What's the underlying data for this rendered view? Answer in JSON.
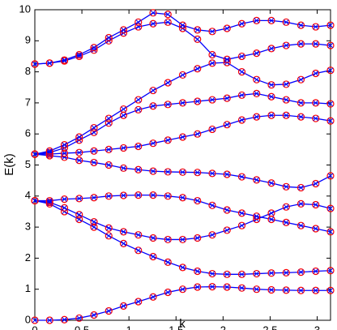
{
  "chart_data": {
    "type": "line",
    "xlabel": "k",
    "ylabel": "E(k)",
    "x": [
      0,
      0.1571,
      0.3142,
      0.4712,
      0.6283,
      0.7854,
      0.9425,
      1.0996,
      1.2566,
      1.4137,
      1.5708,
      1.7279,
      1.885,
      2.042,
      2.1991,
      2.3562,
      2.5133,
      2.6704,
      2.8274,
      2.9845,
      3.1416
    ],
    "line_color": "#0000ff",
    "marker_color": "#ff0000",
    "series": [
      {
        "values": [
          0,
          0,
          0.02,
          0.07,
          0.17,
          0.3,
          0.46,
          0.6,
          0.75,
          0.9,
          1.0,
          1.07,
          1.08,
          1.07,
          1.04,
          1.0,
          0.98,
          0.97,
          0.96,
          0.96,
          0.96
        ]
      },
      {
        "values": [
          3.85,
          3.75,
          3.5,
          3.25,
          3.0,
          2.72,
          2.47,
          2.25,
          2.05,
          1.87,
          1.7,
          1.58,
          1.5,
          1.48,
          1.48,
          1.5,
          1.52,
          1.53,
          1.55,
          1.58,
          1.6
        ]
      },
      {
        "values": [
          3.85,
          3.8,
          3.62,
          3.4,
          3.17,
          2.97,
          2.85,
          2.75,
          2.65,
          2.6,
          2.6,
          2.65,
          2.75,
          2.9,
          3.05,
          3.25,
          3.45,
          3.65,
          3.75,
          3.72,
          3.6
        ]
      },
      {
        "values": [
          3.85,
          3.85,
          3.9,
          3.92,
          3.95,
          4.0,
          4.02,
          4.03,
          4.03,
          4.0,
          3.95,
          3.85,
          3.7,
          3.55,
          3.45,
          3.35,
          3.25,
          3.15,
          3.05,
          2.95,
          2.85
        ]
      },
      {
        "values": [
          5.35,
          5.3,
          5.25,
          5.15,
          5.08,
          5.0,
          4.9,
          4.85,
          4.8,
          4.78,
          4.77,
          4.76,
          4.73,
          4.7,
          4.62,
          4.52,
          4.42,
          4.3,
          4.27,
          4.4,
          4.65
        ]
      },
      {
        "values": [
          5.35,
          5.35,
          5.38,
          5.4,
          5.45,
          5.5,
          5.55,
          5.6,
          5.7,
          5.8,
          5.9,
          6.0,
          6.15,
          6.3,
          6.45,
          6.55,
          6.6,
          6.6,
          6.55,
          6.5,
          6.42
        ]
      },
      {
        "values": [
          5.35,
          5.4,
          5.55,
          5.8,
          6.05,
          6.35,
          6.6,
          6.78,
          6.9,
          6.95,
          7.0,
          7.05,
          7.1,
          7.15,
          7.25,
          7.3,
          7.2,
          7.1,
          7.0,
          7.0,
          6.97
        ]
      },
      {
        "values": [
          5.35,
          5.45,
          5.65,
          5.9,
          6.2,
          6.5,
          6.8,
          7.1,
          7.4,
          7.65,
          7.9,
          8.1,
          8.28,
          8.3,
          8.0,
          7.75,
          7.58,
          7.6,
          7.75,
          7.95,
          8.05
        ]
      },
      {
        "values": [
          8.25,
          8.28,
          8.35,
          8.5,
          8.7,
          9.0,
          9.25,
          9.45,
          9.55,
          9.6,
          9.4,
          9.05,
          8.55,
          8.4,
          8.5,
          8.6,
          8.75,
          8.85,
          8.9,
          8.9,
          8.85
        ]
      },
      {
        "values": [
          8.25,
          8.28,
          8.38,
          8.55,
          8.78,
          9.1,
          9.35,
          9.6,
          9.9,
          9.85,
          9.5,
          9.35,
          9.3,
          9.4,
          9.55,
          9.65,
          9.65,
          9.6,
          9.5,
          9.45,
          9.5
        ]
      }
    ],
    "xlim": [
      0,
      3.1416
    ],
    "ylim": [
      0,
      10
    ],
    "xticks": [
      0,
      0.5,
      1,
      1.5,
      2,
      2.5,
      3
    ],
    "yticks": [
      0,
      1,
      2,
      3,
      4,
      5,
      6,
      7,
      8,
      9,
      10
    ]
  }
}
